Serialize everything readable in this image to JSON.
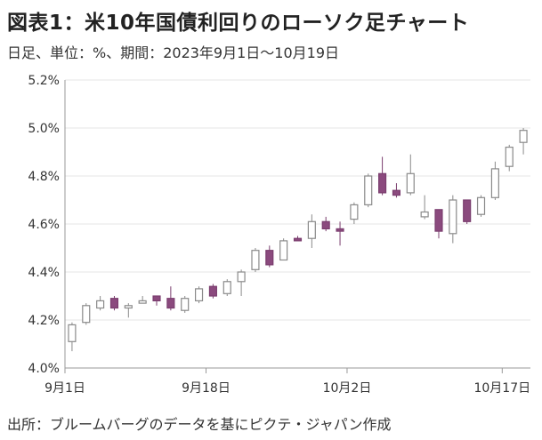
{
  "header": {
    "title": "図表1：米10年国債利回りのローソク足チャート",
    "subtitle": "日足、単位：%、期間：2023年9月1日～10月19日"
  },
  "footer": {
    "source": "出所：ブルームバーグのデータを基にピクテ・ジャパン作成"
  },
  "colors": {
    "up_fill": "#ffffff",
    "up_stroke": "#8a8a8a",
    "down_fill": "#8b4a7e",
    "down_stroke": "#7a3d6e",
    "axis": "#999999",
    "grid": "#e6e6e6"
  },
  "chart_data": {
    "type": "candlestick",
    "y_unit": "%",
    "ylim": [
      4.0,
      5.2
    ],
    "y_ticks": [
      4.0,
      4.2,
      4.4,
      4.6,
      4.8,
      5.0,
      5.2
    ],
    "y_tick_labels": [
      "4.0%",
      "4.2%",
      "4.4%",
      "4.6%",
      "4.8%",
      "5.0%",
      "5.2%"
    ],
    "x_tick_labels": [
      {
        "label": "9月1日",
        "index": 0
      },
      {
        "label": "9月18日",
        "index": 10
      },
      {
        "label": "10月2日",
        "index": 20
      },
      {
        "label": "10月17日",
        "index": 31
      }
    ],
    "grid": "horizontal",
    "candles": [
      {
        "open": 4.11,
        "high": 4.19,
        "low": 4.07,
        "close": 4.18
      },
      {
        "open": 4.19,
        "high": 4.27,
        "low": 4.18,
        "close": 4.26
      },
      {
        "open": 4.25,
        "high": 4.3,
        "low": 4.24,
        "close": 4.28
      },
      {
        "open": 4.29,
        "high": 4.3,
        "low": 4.24,
        "close": 4.25
      },
      {
        "open": 4.25,
        "high": 4.27,
        "low": 4.21,
        "close": 4.26
      },
      {
        "open": 4.27,
        "high": 4.3,
        "low": 4.27,
        "close": 4.28
      },
      {
        "open": 4.3,
        "high": 4.3,
        "low": 4.26,
        "close": 4.28
      },
      {
        "open": 4.29,
        "high": 4.34,
        "low": 4.24,
        "close": 4.25
      },
      {
        "open": 4.24,
        "high": 4.3,
        "low": 4.23,
        "close": 4.29
      },
      {
        "open": 4.28,
        "high": 4.34,
        "low": 4.27,
        "close": 4.33
      },
      {
        "open": 4.34,
        "high": 4.35,
        "low": 4.29,
        "close": 4.3
      },
      {
        "open": 4.31,
        "high": 4.37,
        "low": 4.3,
        "close": 4.36
      },
      {
        "open": 4.36,
        "high": 4.41,
        "low": 4.3,
        "close": 4.4
      },
      {
        "open": 4.41,
        "high": 4.5,
        "low": 4.4,
        "close": 4.49
      },
      {
        "open": 4.49,
        "high": 4.51,
        "low": 4.42,
        "close": 4.43
      },
      {
        "open": 4.45,
        "high": 4.54,
        "low": 4.45,
        "close": 4.53
      },
      {
        "open": 4.54,
        "high": 4.55,
        "low": 4.53,
        "close": 4.53
      },
      {
        "open": 4.54,
        "high": 4.64,
        "low": 4.5,
        "close": 4.61
      },
      {
        "open": 4.61,
        "high": 4.63,
        "low": 4.57,
        "close": 4.58
      },
      {
        "open": 4.58,
        "high": 4.61,
        "low": 4.51,
        "close": 4.57
      },
      {
        "open": 4.62,
        "high": 4.69,
        "low": 4.6,
        "close": 4.68
      },
      {
        "open": 4.68,
        "high": 4.81,
        "low": 4.67,
        "close": 4.8
      },
      {
        "open": 4.81,
        "high": 4.88,
        "low": 4.72,
        "close": 4.73
      },
      {
        "open": 4.74,
        "high": 4.77,
        "low": 4.71,
        "close": 4.72
      },
      {
        "open": 4.73,
        "high": 4.89,
        "low": 4.72,
        "close": 4.81
      },
      {
        "open": 4.63,
        "high": 4.72,
        "low": 4.62,
        "close": 4.65
      },
      {
        "open": 4.66,
        "high": 4.66,
        "low": 4.54,
        "close": 4.57
      },
      {
        "open": 4.56,
        "high": 4.72,
        "low": 4.52,
        "close": 4.7
      },
      {
        "open": 4.7,
        "high": 4.7,
        "low": 4.6,
        "close": 4.61
      },
      {
        "open": 4.64,
        "high": 4.72,
        "low": 4.63,
        "close": 4.71
      },
      {
        "open": 4.71,
        "high": 4.86,
        "low": 4.7,
        "close": 4.83
      },
      {
        "open": 4.84,
        "high": 4.93,
        "low": 4.82,
        "close": 4.92
      },
      {
        "open": 4.94,
        "high": 5.0,
        "low": 4.89,
        "close": 4.99
      }
    ]
  }
}
